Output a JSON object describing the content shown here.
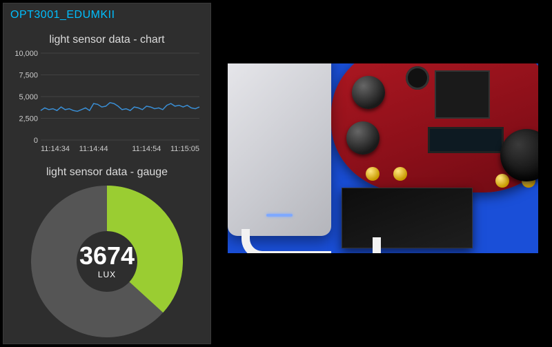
{
  "panel": {
    "title": "OPT3001_EDUMKII",
    "title_color": "#00bfff",
    "background": "#2e2e2e"
  },
  "chart": {
    "type": "line",
    "title": "light sensor data - chart",
    "title_fontsize": 16,
    "title_color": "#dcdcdc",
    "y_ticks": [
      0,
      2500,
      5000,
      7500,
      10000
    ],
    "y_tick_labels": [
      "0",
      "2,500",
      "5,000",
      "7,500",
      "10,000"
    ],
    "ylim": [
      0,
      10000
    ],
    "x_tick_labels": [
      "11:14:34",
      "11:14:44",
      "11:14:54",
      "11:15:05"
    ],
    "grid_color": "#555555",
    "line_color": "#3a8fd6",
    "line_width": 1.5,
    "tick_fontsize": 11,
    "tick_color": "#cccccc",
    "background": "#2e2e2e",
    "series": [
      3400,
      3700,
      3500,
      3600,
      3400,
      3800,
      3500,
      3600,
      3400,
      3300,
      3500,
      3700,
      3400,
      4200,
      4100,
      3800,
      3900,
      4300,
      4200,
      3900,
      3500,
      3600,
      3400,
      3800,
      3700,
      3500,
      3900,
      3800,
      3600,
      3700,
      3500,
      4000,
      4200,
      3900,
      4000,
      3800,
      4000,
      3700,
      3600,
      3800
    ]
  },
  "gauge": {
    "type": "donut",
    "title": "light sensor data - gauge",
    "title_fontsize": 16,
    "title_color": "#dcdcdc",
    "value": 3674,
    "value_text": "3674",
    "value_fontsize": 36,
    "value_color": "#ffffff",
    "unit": "LUX",
    "unit_fontsize": 12,
    "max": 10000,
    "fill_color": "#9acd32",
    "track_color": "#555555",
    "center_color": "#2e2e2e",
    "thickness": 30
  },
  "photo": {
    "description": "hardware-photo",
    "background": "#1a4fd8"
  }
}
